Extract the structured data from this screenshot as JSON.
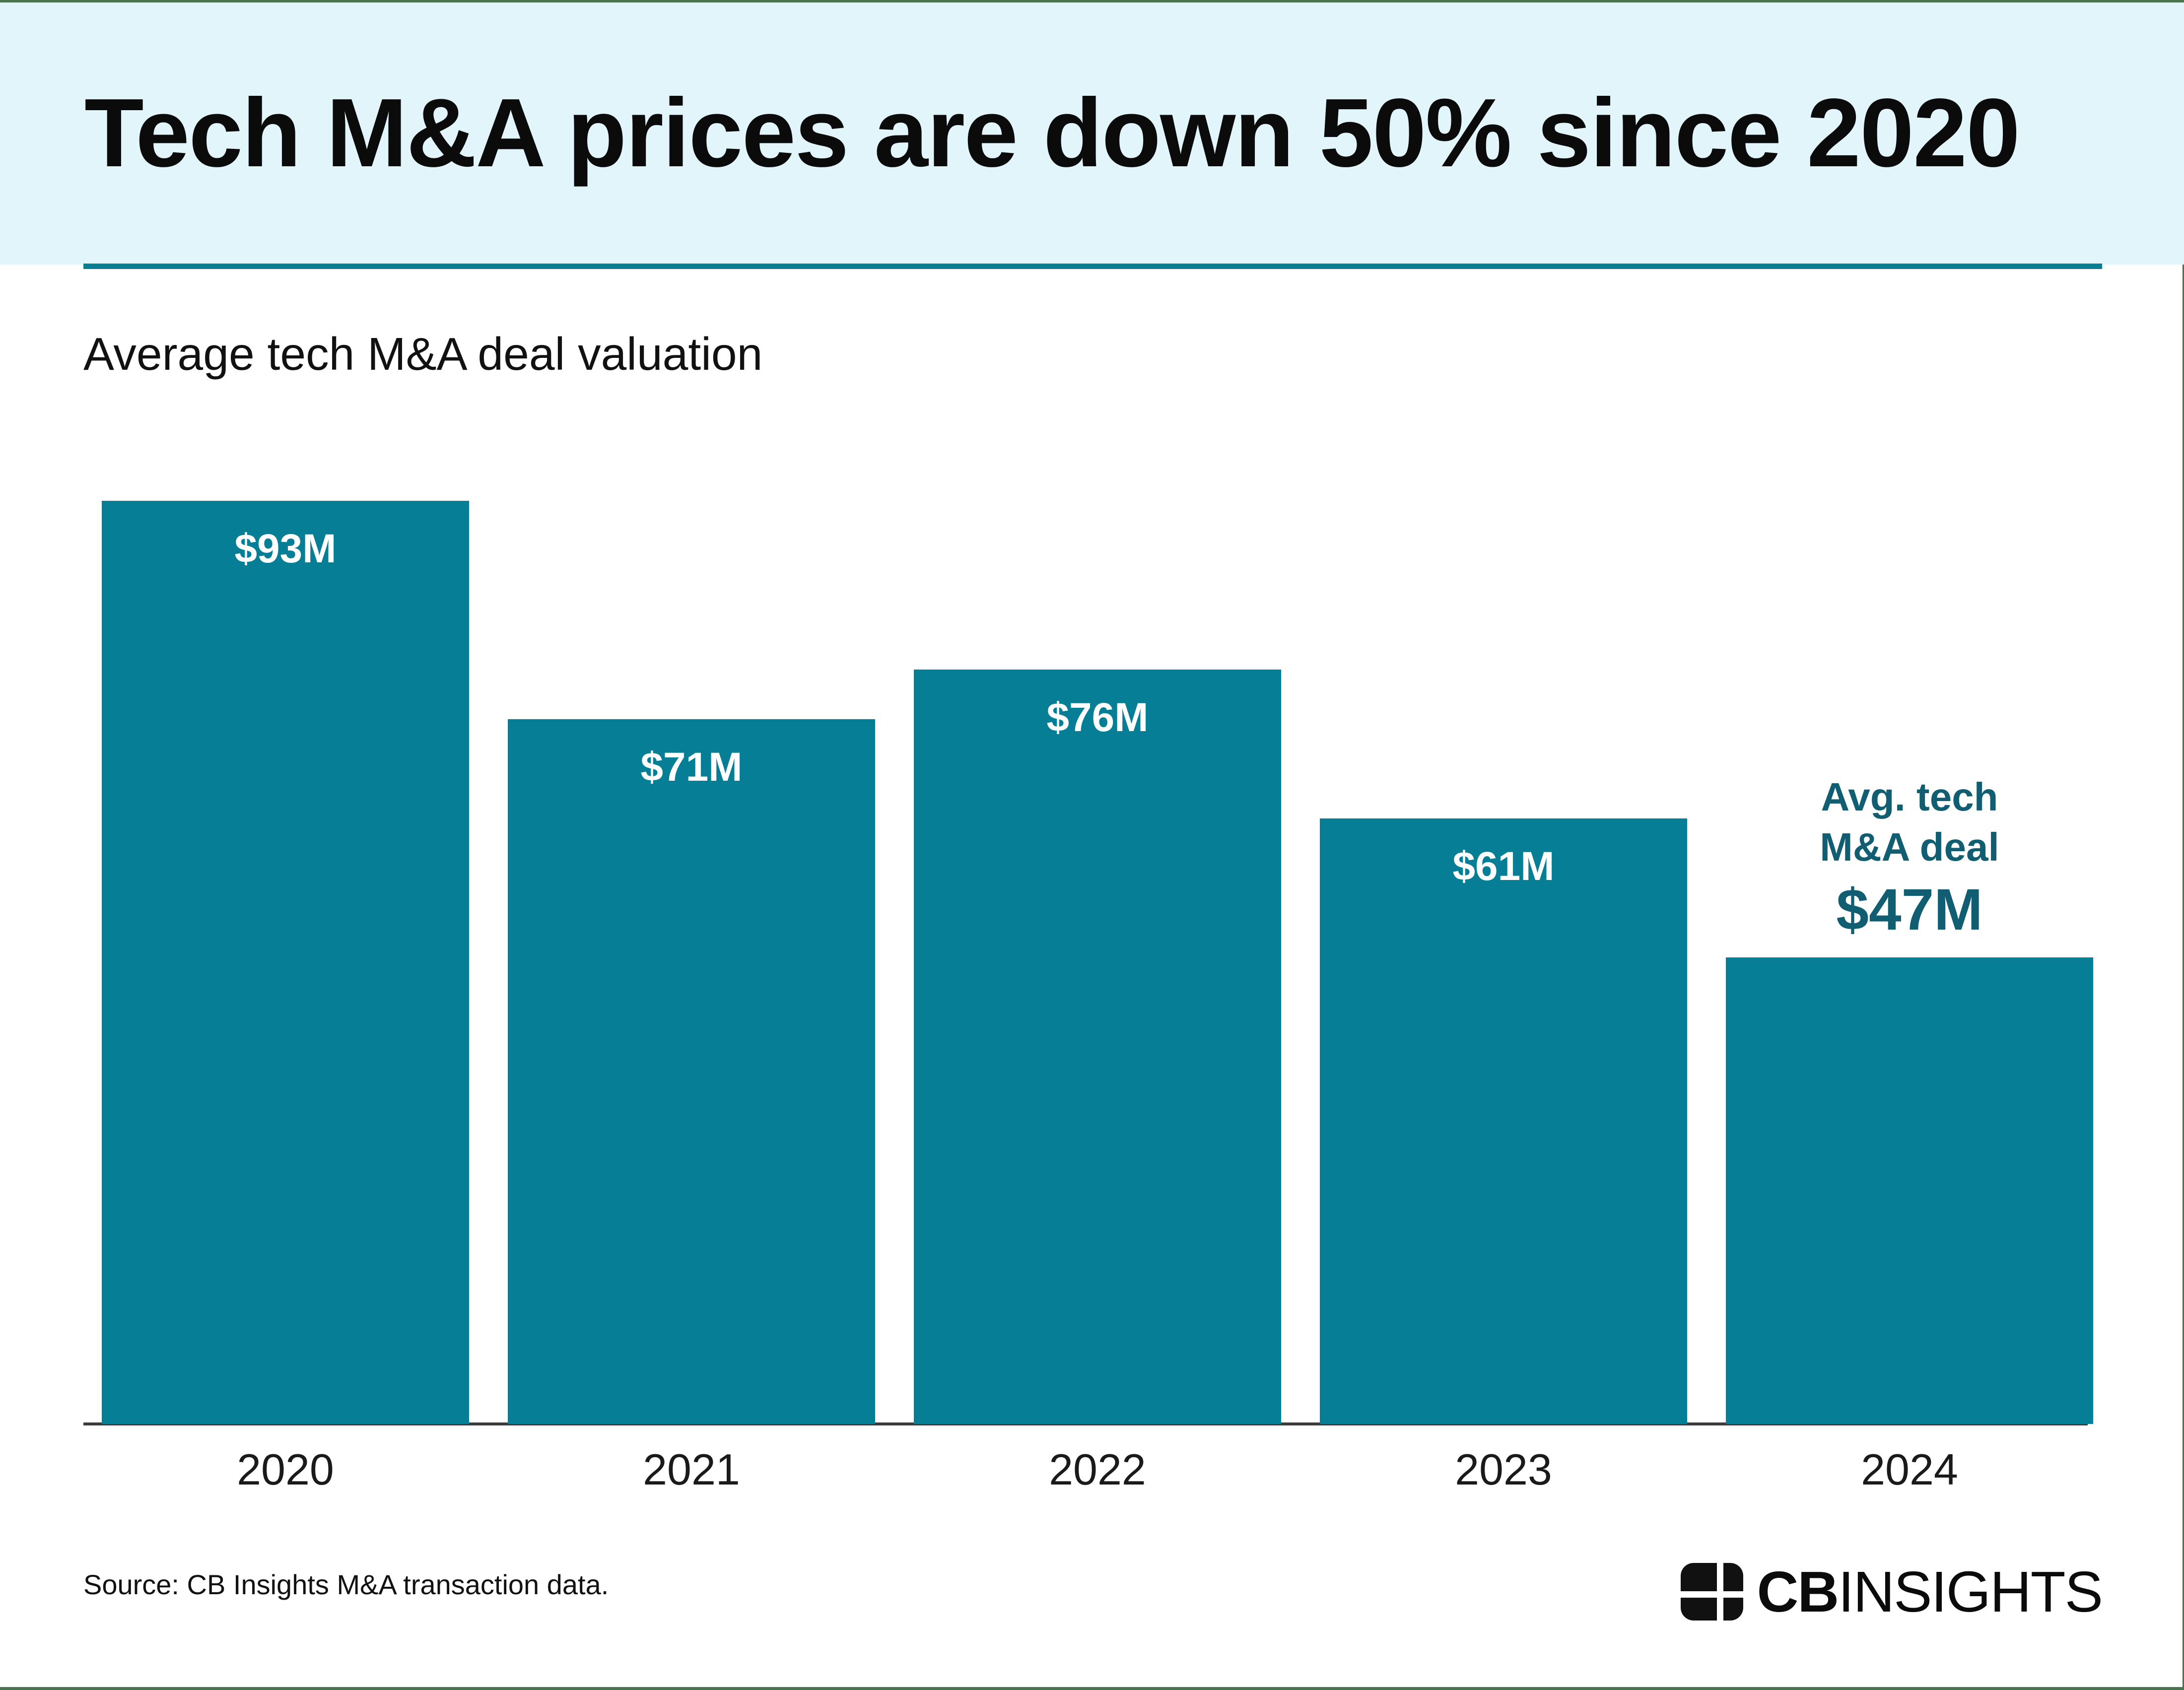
{
  "frame": {
    "border_color": "#4a7350"
  },
  "header": {
    "title": "Tech M&A prices are down 50% since 2020",
    "bg_color": "#e1f5fb",
    "divider_color": "#0a7d92"
  },
  "subtitle": "Average tech M&A deal valuation",
  "chart_data": {
    "type": "bar",
    "categories": [
      "2020",
      "2021",
      "2022",
      "2023",
      "2024"
    ],
    "values": [
      93,
      71,
      76,
      61,
      47
    ],
    "value_labels": [
      "$93M",
      "$71M",
      "$76M",
      "$61M",
      "$47M"
    ],
    "title": "Average tech M&A deal valuation",
    "xlabel": "",
    "ylabel": "",
    "ylim": [
      0,
      100
    ],
    "grid": false,
    "legend": "none",
    "bar_color": "#067e95",
    "value_label_color": "#ffffff",
    "annotation": {
      "bar_index": 4,
      "lines": [
        "Avg. tech",
        "M&A deal"
      ],
      "value": "$47M",
      "color": "#115e72"
    }
  },
  "source": "Source: CB Insights M&A transaction data.",
  "logo": {
    "mark": "cb-insights-window-icon",
    "text_bold": "CB",
    "text_regular": "INSIGHTS"
  }
}
